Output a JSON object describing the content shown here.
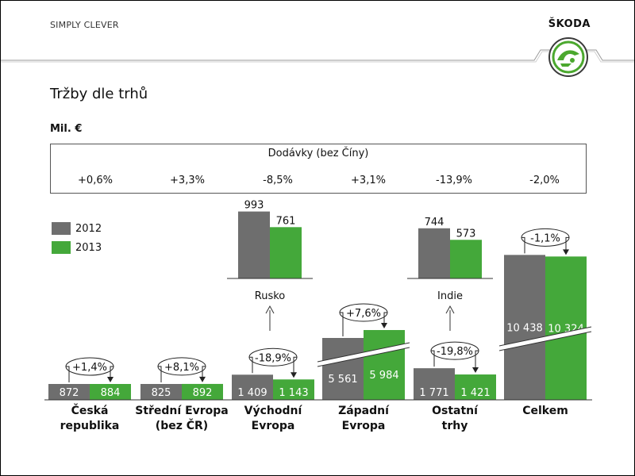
{
  "header": {
    "slogan": "SIMPLY CLEVER",
    "brand": "ŠKODA"
  },
  "slide_title": "Tržby dle trhů",
  "unit_label": "Mil. €",
  "colors": {
    "y2012": "#6e6e6e",
    "y2013": "#44a83a"
  },
  "deliveries": {
    "title": "Dodávky (bez Číny)",
    "values": [
      "+0,6%",
      "+3,3%",
      "-8,5%",
      "+3,1%",
      "-13,9%",
      "-2,0%"
    ]
  },
  "chart_data": {
    "type": "bar",
    "categories": [
      "Česká republika",
      "Střední Evropa (bez ČR)",
      "Východní Evropa",
      "Západní Evropa",
      "Ostatní trhy",
      "Celkem"
    ],
    "category_lines": [
      [
        "Česká",
        "republika"
      ],
      [
        "Střední Evropa",
        "(bez ČR)"
      ],
      [
        "Východní",
        "Evropa"
      ],
      [
        "Západní",
        "Evropa"
      ],
      [
        "Ostatní",
        "trhy"
      ],
      [
        "Celkem"
      ]
    ],
    "series": [
      {
        "name": "2012",
        "values": [
          872,
          825,
          1409,
          5561,
          1771,
          10438
        ],
        "labels": [
          "872",
          "825",
          "1 409",
          "5 561",
          "1 771",
          "10 438"
        ]
      },
      {
        "name": "2013",
        "values": [
          884,
          892,
          1143,
          5984,
          1421,
          10324
        ],
        "labels": [
          "884",
          "892",
          "1 143",
          "5 984",
          "1 421",
          "10 324"
        ]
      }
    ],
    "changes": [
      "+1,4%",
      "+8,1%",
      "-18,9%",
      "+7,6%",
      "-19,8%",
      "-1,1%"
    ],
    "broken_axis": [
      false,
      false,
      false,
      true,
      false,
      true
    ],
    "sub_charts": [
      {
        "name": "Rusko",
        "parent": "Východní Evropa",
        "values": [
          993,
          761
        ],
        "labels": [
          "993",
          "761"
        ]
      },
      {
        "name": "Indie",
        "parent": "Ostatní trhy",
        "values": [
          744,
          573
        ],
        "labels": [
          "744",
          "573"
        ]
      }
    ],
    "legend": [
      "2012",
      "2013"
    ],
    "legend_position": "left"
  }
}
